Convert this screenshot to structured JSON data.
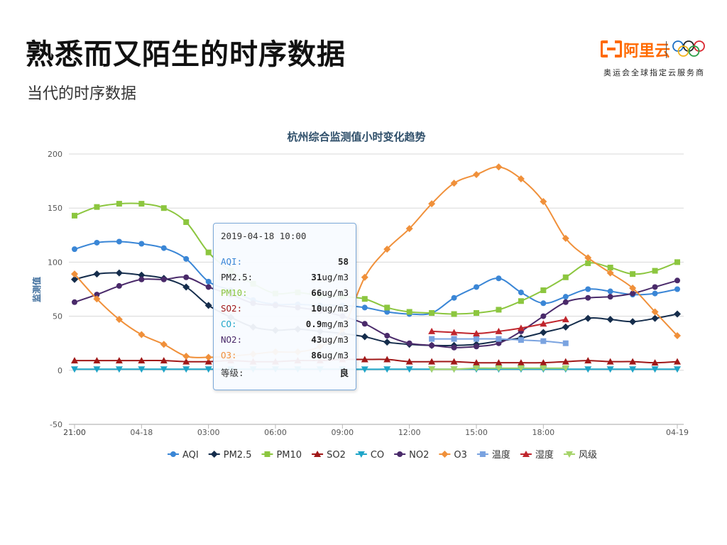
{
  "slide": {
    "title": "熟悉而又陌生的时序数据",
    "subtitle": "当代的时序数据"
  },
  "brand": {
    "name": "阿里云",
    "tagline": "奥运会全球指定云服务商",
    "color": "#ff6a00"
  },
  "tooltip": {
    "time": "2019-04-18 10:00",
    "rows": [
      {
        "label": "AQI:",
        "value": "58",
        "unit": "",
        "color": "#3a86d6"
      },
      {
        "label": "PM2.5:",
        "value": "31",
        "unit": "ug/m3",
        "color": "#222222"
      },
      {
        "label": "PM10:",
        "value": "66",
        "unit": "ug/m3",
        "color": "#8cc63f"
      },
      {
        "label": "SO2:",
        "value": "10",
        "unit": "ug/m3",
        "color": "#a01818"
      },
      {
        "label": "CO:",
        "value": "0.9",
        "unit": "mg/m3",
        "color": "#1ea5c8"
      },
      {
        "label": "NO2:",
        "value": "43",
        "unit": "ug/m3",
        "color": "#4a2a6a"
      },
      {
        "label": "O3:",
        "value": "86",
        "unit": "ug/m3",
        "color": "#f0903a"
      },
      {
        "label": "等级:",
        "value": "良",
        "unit": "",
        "color": "#333333"
      }
    ]
  },
  "chart_data": {
    "type": "line",
    "title": "杭州综合监测值小时变化趋势",
    "ylabel": "监测值",
    "ylim": [
      -50,
      200
    ],
    "yticks": [
      200,
      150,
      100,
      50,
      0,
      -50
    ],
    "grid": true,
    "legend_position": "bottom",
    "x": [
      "21:00",
      "22:00",
      "23:00",
      "04-18",
      "01:00",
      "02:00",
      "03:00",
      "04:00",
      "05:00",
      "06:00",
      "07:00",
      "08:00",
      "09:00",
      "10:00",
      "11:00",
      "12:00",
      "13:00",
      "14:00",
      "15:00",
      "16:00",
      "17:00",
      "18:00",
      "19:00",
      "20:00",
      "21:00",
      "22:00",
      "23:00",
      "04-19"
    ],
    "x_tick_labels": [
      "21:00",
      "04-18",
      "03:00",
      "06:00",
      "09:00",
      "12:00",
      "15:00",
      "18:00",
      "21:00",
      "04-19"
    ],
    "series": [
      {
        "name": "AQI",
        "marker": "circle",
        "color": "#3a86d6",
        "values": [
          112,
          118,
          119,
          117,
          113,
          103,
          82,
          74,
          65,
          61,
          61,
          60,
          60,
          58,
          54,
          52,
          53,
          67,
          77,
          85,
          72,
          62,
          68,
          75,
          73,
          70,
          71,
          75
        ]
      },
      {
        "name": "PM2.5",
        "marker": "diamond",
        "color": "#152d4c",
        "values": [
          84,
          89,
          90,
          88,
          85,
          77,
          60,
          49,
          40,
          37,
          38,
          36,
          34,
          31,
          26,
          24,
          23,
          23,
          24,
          27,
          30,
          35,
          40,
          48,
          47,
          45,
          48,
          52
        ]
      },
      {
        "name": "PM10",
        "marker": "square",
        "color": "#8cc63f",
        "values": [
          143,
          151,
          154,
          154,
          150,
          137,
          109,
          92,
          80,
          71,
          72,
          69,
          68,
          66,
          58,
          54,
          53,
          52,
          53,
          56,
          64,
          74,
          86,
          99,
          95,
          89,
          92,
          100
        ]
      },
      {
        "name": "SO2",
        "marker": "triangle",
        "color": "#a01818",
        "values": [
          9,
          9,
          9,
          9,
          9,
          8,
          8,
          9,
          8,
          8,
          9,
          9,
          10,
          10,
          10,
          8,
          8,
          8,
          7,
          7,
          7,
          7,
          8,
          9,
          8,
          8,
          7,
          8
        ]
      },
      {
        "name": "CO",
        "marker": "triangle-down",
        "color": "#1ea5c8",
        "values": [
          1,
          1,
          1,
          1,
          1,
          1,
          1,
          1,
          1,
          1,
          1,
          1,
          1,
          0.9,
          1,
          1,
          1,
          1,
          1,
          1,
          1,
          1,
          1,
          1,
          1,
          1,
          1,
          1
        ]
      },
      {
        "name": "NO2",
        "marker": "circle",
        "color": "#4a2a6a",
        "values": [
          63,
          70,
          78,
          84,
          84,
          86,
          77,
          70,
          62,
          60,
          58,
          55,
          50,
          43,
          32,
          25,
          23,
          21,
          22,
          25,
          36,
          50,
          63,
          67,
          68,
          71,
          77,
          83
        ]
      },
      {
        "name": "O3",
        "marker": "diamond",
        "color": "#f0903a",
        "values": [
          89,
          66,
          47,
          33,
          24,
          13,
          12,
          13,
          15,
          17,
          17,
          22,
          38,
          86,
          112,
          131,
          154,
          173,
          181,
          188,
          177,
          156,
          122,
          104,
          90,
          76,
          54,
          32
        ]
      },
      {
        "name": "温度",
        "marker": "square",
        "color": "#7aa3e0",
        "values": [
          null,
          null,
          null,
          null,
          null,
          null,
          null,
          null,
          null,
          null,
          null,
          null,
          null,
          null,
          null,
          null,
          29,
          29,
          29,
          29,
          28,
          27,
          25,
          null,
          null,
          null,
          null,
          null
        ]
      },
      {
        "name": "湿度",
        "marker": "triangle",
        "color": "#c0262d",
        "values": [
          null,
          null,
          null,
          null,
          null,
          null,
          null,
          null,
          null,
          null,
          null,
          null,
          null,
          null,
          null,
          null,
          36,
          35,
          34,
          36,
          39,
          43,
          47,
          null,
          null,
          null,
          null,
          null
        ]
      },
      {
        "name": "风级",
        "marker": "triangle-down",
        "color": "#a6d46a",
        "values": [
          null,
          null,
          null,
          null,
          null,
          null,
          null,
          null,
          null,
          null,
          null,
          null,
          null,
          null,
          null,
          null,
          1,
          1,
          2,
          2,
          2,
          2,
          2,
          null,
          null,
          null,
          null,
          null
        ]
      }
    ]
  }
}
